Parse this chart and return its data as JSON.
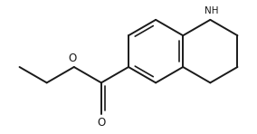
{
  "bg_color": "#ffffff",
  "line_color": "#1a1a1a",
  "line_width": 1.4,
  "font_size": 7.5,
  "NH_label": "NH",
  "O_label": "O",
  "O2_label": "O"
}
